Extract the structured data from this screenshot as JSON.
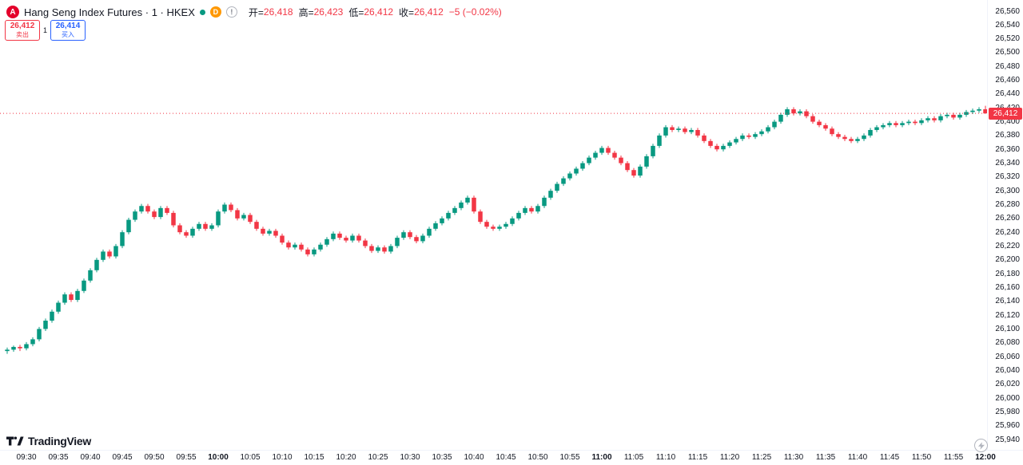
{
  "header": {
    "symbol_logo": "A",
    "title": "Hang Seng Index Futures · 1 · HKEX",
    "delayed_badge": "D",
    "alert_badge": "!",
    "ohlc": {
      "open_label": "开=",
      "open": "26,418",
      "high_label": "高=",
      "high": "26,423",
      "low_label": "低=",
      "low": "26,412",
      "close_label": "收=",
      "close": "26,412",
      "change": "−5 (−0.02%)"
    }
  },
  "trade_panel": {
    "sell_price": "26,412",
    "sell_label": "卖出",
    "spread": "1",
    "buy_price": "26,414",
    "buy_label": "买入"
  },
  "price_axis": {
    "last_price_label": "26,412"
  },
  "footer": {
    "logo_text": "TradingView"
  },
  "colors": {
    "up": "#089981",
    "down": "#F23645",
    "buy": "#2962FF",
    "sell": "#F23645",
    "delayed": "#FF9800",
    "text": "#131722",
    "muted": "#787B86",
    "last_price_line": "#F23645"
  },
  "chart_data": {
    "type": "candlestick",
    "title": "Hang Seng Index Futures",
    "interval": "1 minute",
    "exchange": "HKEX",
    "last_price": 26412,
    "change": -5,
    "change_pct": "-0.02%",
    "up_color": "#089981",
    "down_color": "#F23645",
    "grid": false,
    "legend_position": "top-left",
    "y_axis": {
      "min": 25940,
      "max": 26560,
      "step": 20,
      "tick_labels": [
        "26,560",
        "26,540",
        "26,520",
        "26,500",
        "26,480",
        "26,460",
        "26,440",
        "26,420",
        "26,400",
        "26,380",
        "26,360",
        "26,340",
        "26,320",
        "26,300",
        "26,280",
        "26,260",
        "26,240",
        "26,220",
        "26,200",
        "26,180",
        "26,160",
        "26,140",
        "26,120",
        "26,100",
        "26,080",
        "26,060",
        "26,040",
        "26,020",
        "26,000",
        "25,980",
        "25,960",
        "25,940"
      ]
    },
    "x_axis": {
      "start_time": "09:27",
      "interval_minutes": 1,
      "tick_labels": [
        "09:30",
        "09:35",
        "09:40",
        "09:45",
        "09:50",
        "09:55",
        "10:00",
        "10:05",
        "10:10",
        "10:15",
        "10:20",
        "10:25",
        "10:30",
        "10:35",
        "10:40",
        "10:45",
        "10:50",
        "10:55",
        "11:00",
        "11:05",
        "11:10",
        "11:15",
        "11:20",
        "11:25",
        "11:30",
        "11:35",
        "11:40",
        "11:45",
        "11:50",
        "11:55",
        "12:00"
      ]
    },
    "candle_format": "[open, high, low, close]",
    "candles": [
      [
        26068,
        26073,
        26064,
        26070
      ],
      [
        26070,
        26076,
        26067,
        26074
      ],
      [
        26074,
        26077,
        26068,
        26072
      ],
      [
        26072,
        26081,
        26069,
        26078
      ],
      [
        26078,
        26088,
        26075,
        26085
      ],
      [
        26085,
        26103,
        26082,
        26100
      ],
      [
        26100,
        26115,
        26097,
        26112
      ],
      [
        26112,
        26128,
        26109,
        26125
      ],
      [
        26125,
        26141,
        26122,
        26138
      ],
      [
        26138,
        26153,
        26135,
        26150
      ],
      [
        26150,
        26153,
        26139,
        26142
      ],
      [
        26142,
        26158,
        26139,
        26155
      ],
      [
        26155,
        26173,
        26152,
        26170
      ],
      [
        26170,
        26188,
        26167,
        26185
      ],
      [
        26185,
        26203,
        26182,
        26200
      ],
      [
        26200,
        26215,
        26197,
        26212
      ],
      [
        26212,
        26215,
        26202,
        26205
      ],
      [
        26205,
        26223,
        26202,
        26220
      ],
      [
        26220,
        26243,
        26217,
        26240
      ],
      [
        26240,
        26261,
        26237,
        26258
      ],
      [
        26258,
        26273,
        26255,
        26270
      ],
      [
        26270,
        26281,
        26267,
        26278
      ],
      [
        26278,
        26281,
        26267,
        26270
      ],
      [
        26270,
        26273,
        26259,
        26262
      ],
      [
        26262,
        26278,
        26259,
        26275
      ],
      [
        26275,
        26278,
        26265,
        26268
      ],
      [
        26268,
        26271,
        26247,
        26250
      ],
      [
        26250,
        26253,
        26237,
        26240
      ],
      [
        26240,
        26243,
        26232,
        26235
      ],
      [
        26235,
        26248,
        26232,
        26245
      ],
      [
        26245,
        26255,
        26242,
        26252
      ],
      [
        26252,
        26255,
        26242,
        26245
      ],
      [
        26245,
        26253,
        26242,
        26250
      ],
      [
        26250,
        26273,
        26247,
        26270
      ],
      [
        26270,
        26283,
        26267,
        26280
      ],
      [
        26280,
        26283,
        26269,
        26272
      ],
      [
        26272,
        26275,
        26257,
        26260
      ],
      [
        26260,
        26268,
        26257,
        26265
      ],
      [
        26265,
        26268,
        26252,
        26255
      ],
      [
        26255,
        26258,
        26242,
        26245
      ],
      [
        26245,
        26248,
        26235,
        26238
      ],
      [
        26238,
        26245,
        26235,
        26242
      ],
      [
        26242,
        26245,
        26232,
        26235
      ],
      [
        26235,
        26238,
        26222,
        26225
      ],
      [
        26225,
        26228,
        26215,
        26218
      ],
      [
        26218,
        26225,
        26215,
        26222
      ],
      [
        26222,
        26225,
        26212,
        26215
      ],
      [
        26215,
        26218,
        26205,
        26208
      ],
      [
        26208,
        26218,
        26205,
        26215
      ],
      [
        26215,
        26225,
        26212,
        26222
      ],
      [
        26222,
        26233,
        26219,
        26230
      ],
      [
        26230,
        26241,
        26227,
        26238
      ],
      [
        26238,
        26241,
        26229,
        26232
      ],
      [
        26232,
        26235,
        26225,
        26228
      ],
      [
        26228,
        26238,
        26225,
        26235
      ],
      [
        26235,
        26238,
        26225,
        26228
      ],
      [
        26228,
        26231,
        26217,
        26220
      ],
      [
        26220,
        26223,
        26210,
        26213
      ],
      [
        26213,
        26221,
        26210,
        26218
      ],
      [
        26218,
        26221,
        26209,
        26212
      ],
      [
        26212,
        26223,
        26209,
        26220
      ],
      [
        26220,
        26235,
        26217,
        26232
      ],
      [
        26232,
        26243,
        26229,
        26240
      ],
      [
        26240,
        26243,
        26230,
        26233
      ],
      [
        26233,
        26236,
        26224,
        26227
      ],
      [
        26227,
        26238,
        26224,
        26235
      ],
      [
        26235,
        26248,
        26232,
        26245
      ],
      [
        26245,
        26256,
        26242,
        26253
      ],
      [
        26253,
        26263,
        26250,
        26260
      ],
      [
        26260,
        26271,
        26257,
        26268
      ],
      [
        26268,
        26278,
        26265,
        26275
      ],
      [
        26275,
        26286,
        26272,
        26283
      ],
      [
        26283,
        26293,
        26280,
        26290
      ],
      [
        26290,
        26293,
        26267,
        26270
      ],
      [
        26270,
        26273,
        26252,
        26255
      ],
      [
        26255,
        26258,
        26245,
        26248
      ],
      [
        26248,
        26251,
        26242,
        26245
      ],
      [
        26245,
        26251,
        26242,
        26248
      ],
      [
        26248,
        26255,
        26245,
        26252
      ],
      [
        26252,
        26263,
        26249,
        26260
      ],
      [
        26260,
        26271,
        26257,
        26268
      ],
      [
        26268,
        26278,
        26265,
        26275
      ],
      [
        26275,
        26278,
        26267,
        26270
      ],
      [
        26270,
        26281,
        26267,
        26278
      ],
      [
        26278,
        26293,
        26275,
        26290
      ],
      [
        26290,
        26303,
        26287,
        26300
      ],
      [
        26300,
        26313,
        26297,
        26310
      ],
      [
        26310,
        26321,
        26307,
        26318
      ],
      [
        26318,
        26328,
        26315,
        26325
      ],
      [
        26325,
        26335,
        26322,
        26332
      ],
      [
        26332,
        26343,
        26329,
        26340
      ],
      [
        26340,
        26351,
        26337,
        26348
      ],
      [
        26348,
        26358,
        26345,
        26355
      ],
      [
        26355,
        26365,
        26352,
        26362
      ],
      [
        26362,
        26365,
        26352,
        26355
      ],
      [
        26355,
        26358,
        26345,
        26348
      ],
      [
        26348,
        26351,
        26337,
        26340
      ],
      [
        26340,
        26343,
        26327,
        26330
      ],
      [
        26330,
        26333,
        26319,
        26322
      ],
      [
        26322,
        26338,
        26319,
        26335
      ],
      [
        26335,
        26353,
        26332,
        26350
      ],
      [
        26350,
        26368,
        26347,
        26365
      ],
      [
        26365,
        26383,
        26362,
        26380
      ],
      [
        26380,
        26395,
        26377,
        26392
      ],
      [
        26392,
        26395,
        26385,
        26388
      ],
      [
        26388,
        26393,
        26385,
        26390
      ],
      [
        26390,
        26393,
        26382,
        26385
      ],
      [
        26385,
        26391,
        26382,
        26388
      ],
      [
        26388,
        26391,
        26377,
        26380
      ],
      [
        26380,
        26383,
        26369,
        26372
      ],
      [
        26372,
        26375,
        26362,
        26365
      ],
      [
        26365,
        26368,
        26357,
        26360
      ],
      [
        26360,
        26368,
        26357,
        26365
      ],
      [
        26365,
        26373,
        26362,
        26370
      ],
      [
        26370,
        26378,
        26367,
        26375
      ],
      [
        26375,
        26383,
        26372,
        26380
      ],
      [
        26380,
        26383,
        26375,
        26378
      ],
      [
        26378,
        26385,
        26375,
        26382
      ],
      [
        26382,
        26389,
        26379,
        26386
      ],
      [
        26386,
        26395,
        26383,
        26392
      ],
      [
        26392,
        26403,
        26389,
        26400
      ],
      [
        26400,
        26413,
        26397,
        26410
      ],
      [
        26410,
        26421,
        26407,
        26418
      ],
      [
        26418,
        26421,
        26409,
        26412
      ],
      [
        26412,
        26418,
        26409,
        26415
      ],
      [
        26415,
        26418,
        26405,
        26408
      ],
      [
        26408,
        26411,
        26397,
        26400
      ],
      [
        26400,
        26403,
        26392,
        26395
      ],
      [
        26395,
        26398,
        26387,
        26390
      ],
      [
        26390,
        26393,
        26379,
        26382
      ],
      [
        26382,
        26385,
        26375,
        26378
      ],
      [
        26378,
        26381,
        26372,
        26375
      ],
      [
        26375,
        26378,
        26369,
        26372
      ],
      [
        26372,
        26378,
        26369,
        26375
      ],
      [
        26375,
        26383,
        26372,
        26380
      ],
      [
        26380,
        26391,
        26377,
        26388
      ],
      [
        26388,
        26395,
        26385,
        26392
      ],
      [
        26392,
        26398,
        26389,
        26395
      ],
      [
        26395,
        26401,
        26392,
        26398
      ],
      [
        26398,
        26401,
        26392,
        26395
      ],
      [
        26395,
        26401,
        26392,
        26398
      ],
      [
        26398,
        26403,
        26395,
        26400
      ],
      [
        26400,
        26403,
        26395,
        26398
      ],
      [
        26398,
        26405,
        26395,
        26402
      ],
      [
        26402,
        26408,
        26399,
        26405
      ],
      [
        26405,
        26408,
        26399,
        26402
      ],
      [
        26402,
        26411,
        26399,
        26408
      ],
      [
        26408,
        26413,
        26405,
        26410
      ],
      [
        26410,
        26413,
        26403,
        26406
      ],
      [
        26406,
        26413,
        26403,
        26410
      ],
      [
        26410,
        26417,
        26407,
        26414
      ],
      [
        26414,
        26419,
        26411,
        26416
      ],
      [
        26416,
        26421,
        26413,
        26418
      ],
      [
        26418,
        26423,
        26412,
        26412
      ]
    ]
  }
}
